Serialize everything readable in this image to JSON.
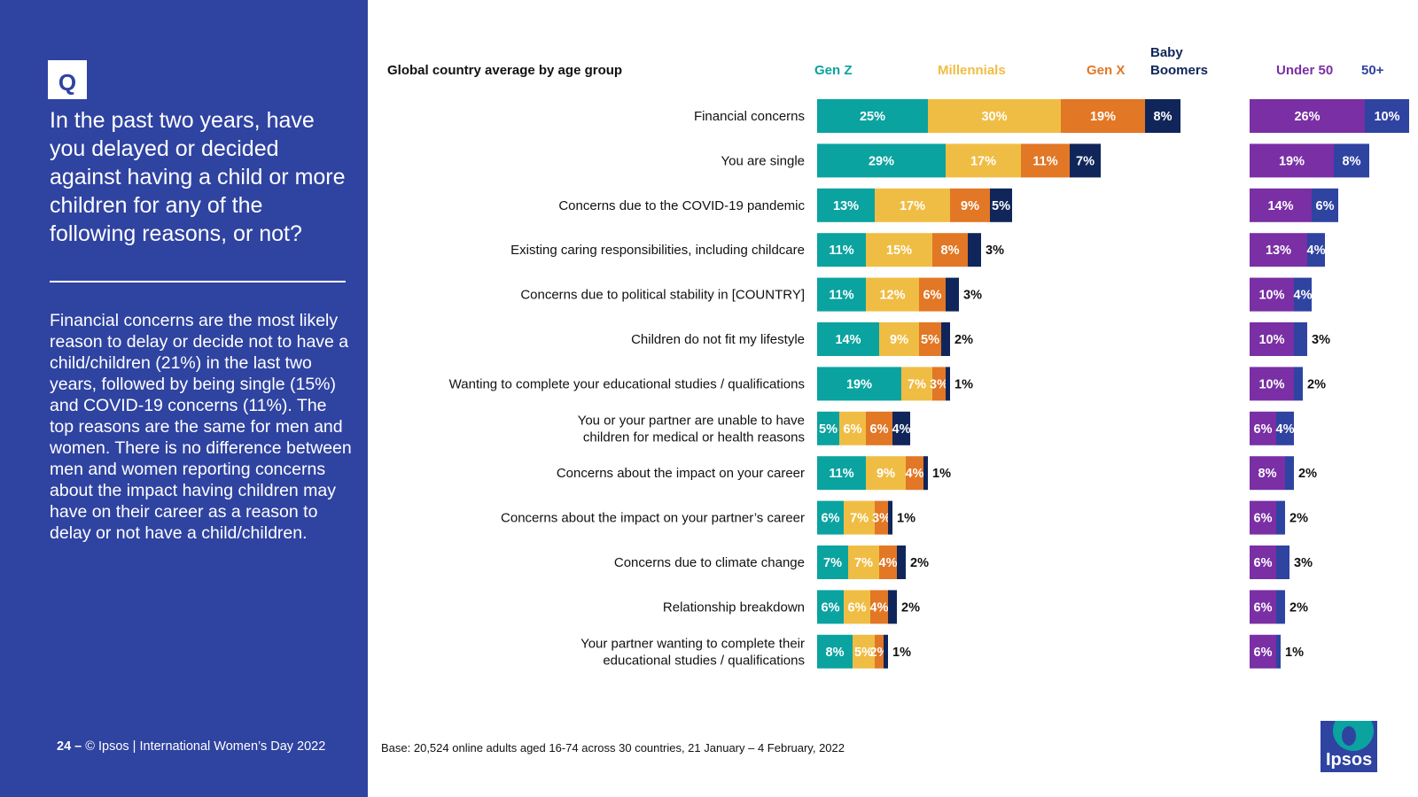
{
  "question": {
    "badge": "Q",
    "text": "In the past two years, have you delayed or decided against having a child or more children for any of the following reasons, or not?"
  },
  "summary": "Financial concerns are the most likely reason to delay or decide not to have a child/children (21%) in the last two years, followed by being single (15%) and COVID-19 concerns (11%). The top reasons are the same for men and women. There is no difference between men and women reporting concerns about the impact having children may have on their career as a reason to delay or not have a child/children.",
  "footer": {
    "page": "24",
    "dash": "–",
    "copyright": "© Ipsos | International Women’s Day 2022",
    "base": "Base: 20,524 online adults aged 16-74 across 30 countries, 21 January – 4 February, 2022"
  },
  "logo": {
    "text": "Ipsos"
  },
  "chart_data": [
    {
      "type": "bar",
      "stacked": true,
      "orientation": "horizontal",
      "title": "Global country average by age group",
      "categories": [
        "Financial concerns",
        "You are single",
        "Concerns due to the COVID-19 pandemic",
        "Existing caring responsibilities, including childcare",
        "Concerns due to political stability in [COUNTRY]",
        "Children do not fit my lifestyle",
        "Wanting to complete your educational studies / qualifications",
        "You or your partner are unable to have children for medical or health reasons",
        "Concerns about the impact on your career",
        "Concerns about the impact on your partner’s career",
        "Concerns due to climate change",
        "Relationship breakdown",
        "Your partner wanting to complete their educational studies / qualifications"
      ],
      "category_lines": [
        [
          "Financial concerns"
        ],
        [
          "You are single"
        ],
        [
          "Concerns due to the COVID-19 pandemic"
        ],
        [
          "Existing caring responsibilities, including childcare"
        ],
        [
          "Concerns due to political stability in [COUNTRY]"
        ],
        [
          "Children do not fit my lifestyle"
        ],
        [
          "Wanting to complete your educational studies / qualifications"
        ],
        [
          "You or your partner are unable to have",
          "children for medical or health reasons"
        ],
        [
          "Concerns about the impact on your career"
        ],
        [
          "Concerns about the impact on your partner’s career"
        ],
        [
          "Concerns due to climate change"
        ],
        [
          "Relationship breakdown"
        ],
        [
          "Your partner wanting to complete their",
          "educational studies / qualifications"
        ]
      ],
      "unit": "%",
      "series": [
        {
          "name": "Gen Z",
          "name_lines": [
            "Gen Z"
          ],
          "color": "#0aa3a0",
          "values": [
            25,
            29,
            13,
            11,
            11,
            14,
            19,
            5,
            11,
            6,
            7,
            6,
            8
          ]
        },
        {
          "name": "Millennials",
          "name_lines": [
            "Millennials"
          ],
          "color": "#f0bd44",
          "values": [
            30,
            17,
            17,
            15,
            12,
            9,
            7,
            6,
            9,
            7,
            7,
            6,
            5
          ]
        },
        {
          "name": "Gen X",
          "name_lines": [
            "Gen X"
          ],
          "color": "#e27725",
          "values": [
            19,
            11,
            9,
            8,
            6,
            5,
            3,
            6,
            4,
            3,
            4,
            4,
            2
          ]
        },
        {
          "name": "Baby Boomers",
          "name_lines": [
            "Baby",
            "Boomers"
          ],
          "color": "#10265a",
          "values": [
            8,
            7,
            5,
            3,
            3,
            2,
            1,
            4,
            1,
            1,
            2,
            2,
            1
          ]
        }
      ]
    },
    {
      "type": "bar",
      "stacked": true,
      "orientation": "horizontal",
      "categories": [
        "Financial concerns",
        "You are single",
        "Concerns due to the COVID-19 pandemic",
        "Existing caring responsibilities, including childcare",
        "Concerns due to political stability in [COUNTRY]",
        "Children do not fit my lifestyle",
        "Wanting to complete your educational studies / qualifications",
        "You or your partner are unable to have children for medical or health reasons",
        "Concerns about the impact on your career",
        "Concerns about the impact on your partner’s career",
        "Concerns due to climate change",
        "Relationship breakdown",
        "Your partner wanting to complete their educational studies / qualifications"
      ],
      "unit": "%",
      "series": [
        {
          "name": "Under 50",
          "name_lines": [
            "Under 50"
          ],
          "color": "#7a2fa5",
          "values": [
            26,
            19,
            14,
            13,
            10,
            10,
            10,
            6,
            8,
            6,
            6,
            6,
            6
          ]
        },
        {
          "name": "50+",
          "name_lines": [
            "50+"
          ],
          "color": "#2f43a1",
          "values": [
            10,
            8,
            6,
            4,
            4,
            3,
            2,
            4,
            2,
            2,
            3,
            2,
            1
          ]
        }
      ]
    }
  ]
}
